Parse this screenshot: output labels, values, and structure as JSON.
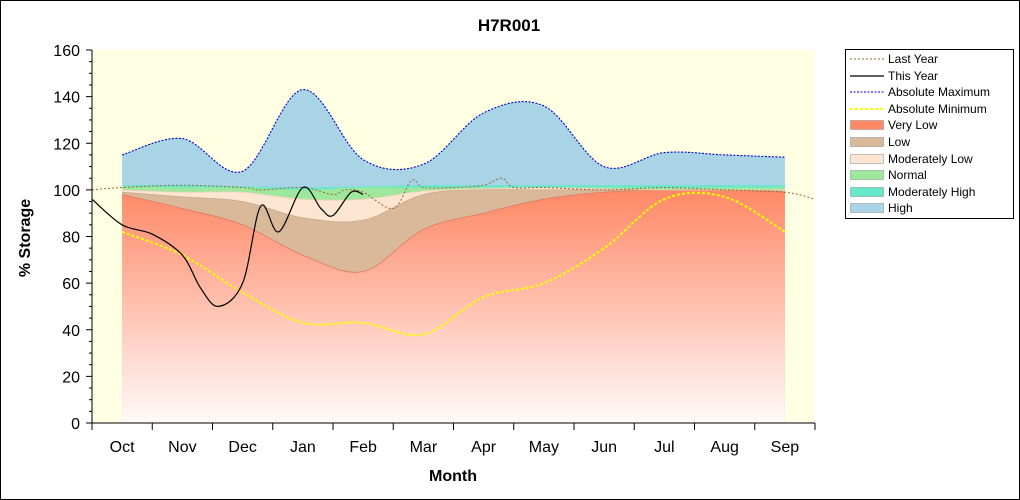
{
  "chart_data": {
    "type": "area",
    "title": "H7R001",
    "xlabel": "Month",
    "ylabel": "% Storage",
    "ylim": [
      0,
      160
    ],
    "yticks": [
      0,
      20,
      40,
      60,
      80,
      100,
      120,
      140,
      160
    ],
    "x_ticks": [
      "Oct",
      "Nov",
      "Dec",
      "Jan",
      "Feb",
      "Mar",
      "Apr",
      "May",
      "Jun",
      "Jul",
      "Aug",
      "Sep"
    ],
    "x_range": [
      -0.5,
      11.5
    ],
    "grid": false,
    "legend_position": "right",
    "colors": {
      "very_low": "#ff8866",
      "low": "#d9b99a",
      "moderately_low": "#fce6d2",
      "normal": "#9ee89e",
      "moderately_high": "#66e8cc",
      "high": "#a8d4e6",
      "plot_background": "#ffffe4",
      "abs_max_line": "#0000cc",
      "abs_min_line": "#ffff00",
      "this_year_line": "#000000",
      "last_year_line": "#996633"
    },
    "bands": {
      "x": [
        0,
        1,
        2,
        3,
        4,
        5,
        6,
        7,
        8,
        9,
        10,
        11
      ],
      "very_low_top": [
        98,
        92,
        85,
        72,
        65,
        83,
        90,
        96,
        99,
        100,
        100,
        99
      ],
      "low_top": [
        99,
        97,
        95,
        88,
        87,
        98,
        100,
        100,
        100,
        100,
        100,
        99.5
      ],
      "moderately_low_top": [
        100,
        99,
        99,
        96,
        96,
        99.5,
        100.5,
        101,
        100.5,
        100,
        100,
        100
      ],
      "normal_top": [
        101.5,
        101,
        101,
        100,
        101,
        101,
        101,
        101,
        101,
        101,
        101,
        101
      ],
      "moderately_high_top": [
        102,
        102,
        101.5,
        101,
        101.5,
        102,
        102,
        102,
        102,
        102,
        102,
        102
      ],
      "high_top": [
        115,
        122,
        108,
        143,
        113,
        111,
        133,
        136,
        110,
        116,
        115,
        114
      ]
    },
    "series": [
      {
        "name": "Last Year",
        "x": [
          -0.5,
          0,
          1,
          2,
          2.3,
          3,
          3.5,
          3.7,
          4,
          4.5,
          4.8,
          5,
          5.5,
          6,
          6.3,
          6.5,
          7,
          8,
          9,
          10,
          11,
          11.5
        ],
        "values": [
          100,
          101,
          102,
          101,
          100,
          101,
          98,
          100,
          99,
          92,
          104,
          101,
          101,
          102,
          105,
          101,
          101,
          100,
          101,
          100,
          99,
          96
        ]
      },
      {
        "name": "This Year",
        "x": [
          -0.5,
          0,
          0.5,
          1,
          1.3,
          1.6,
          2,
          2.3,
          2.6,
          3,
          3.3,
          3.5,
          3.8,
          4
        ],
        "values": [
          96,
          85,
          81,
          72,
          58,
          50,
          60,
          93,
          82,
          101,
          92,
          89,
          99,
          98
        ]
      },
      {
        "name": "Absolute Maximum",
        "x": [
          0,
          1,
          2,
          3,
          4,
          5,
          6,
          7,
          8,
          9,
          10,
          11
        ],
        "values": [
          115,
          122,
          108,
          143,
          113,
          111,
          133,
          136,
          110,
          116,
          115,
          114
        ]
      },
      {
        "name": "Absolute Minimum",
        "x": [
          0,
          1,
          2,
          3,
          4,
          5,
          6,
          7,
          8,
          9,
          10,
          11
        ],
        "values": [
          82,
          72,
          56,
          43,
          43,
          38,
          54,
          60,
          75,
          96,
          97,
          82
        ]
      }
    ],
    "legend": [
      {
        "key": "last_year",
        "label": "Last Year",
        "kind": "line"
      },
      {
        "key": "this_year",
        "label": "This Year",
        "kind": "line"
      },
      {
        "key": "abs_max",
        "label": "Absolute Maximum",
        "kind": "line"
      },
      {
        "key": "abs_min",
        "label": "Absolute Minimum",
        "kind": "line"
      },
      {
        "key": "very_low",
        "label": "Very Low",
        "kind": "fill"
      },
      {
        "key": "low",
        "label": "Low",
        "kind": "fill"
      },
      {
        "key": "moderately_low",
        "label": "Moderately Low",
        "kind": "fill"
      },
      {
        "key": "normal",
        "label": "Normal",
        "kind": "fill"
      },
      {
        "key": "moderately_high",
        "label": "Moderately High",
        "kind": "fill"
      },
      {
        "key": "high",
        "label": "High",
        "kind": "fill"
      }
    ]
  }
}
